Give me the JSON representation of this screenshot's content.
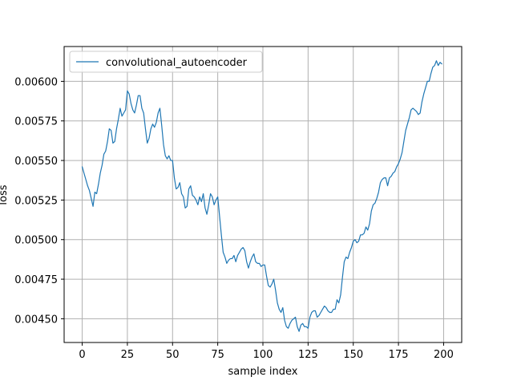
{
  "chart_data": {
    "type": "line",
    "title": "",
    "xlabel": "sample index",
    "ylabel": "loss",
    "xlim": [
      -10,
      210
    ],
    "ylim": [
      0.00435,
      0.00622
    ],
    "xticks": [
      0,
      25,
      50,
      75,
      100,
      125,
      150,
      175,
      200
    ],
    "yticks": [
      0.0045,
      0.00475,
      0.005,
      0.00525,
      0.0055,
      0.00575,
      0.006
    ],
    "ytick_labels": [
      "0.00450",
      "0.00475",
      "0.00500",
      "0.00525",
      "0.00550",
      "0.00575",
      "0.00600"
    ],
    "grid": true,
    "legend_position": "top-left",
    "series_color": "#1f77b4",
    "series": [
      {
        "name": "convolutional_autoencoder",
        "x": [
          0,
          1,
          2,
          3,
          4,
          5,
          6,
          7,
          8,
          9,
          10,
          11,
          12,
          13,
          14,
          15,
          16,
          17,
          18,
          19,
          20,
          21,
          22,
          23,
          24,
          25,
          26,
          27,
          28,
          29,
          30,
          31,
          32,
          33,
          34,
          35,
          36,
          37,
          38,
          39,
          40,
          41,
          42,
          43,
          44,
          45,
          46,
          47,
          48,
          49,
          50,
          51,
          52,
          53,
          54,
          55,
          56,
          57,
          58,
          59,
          60,
          61,
          62,
          63,
          64,
          65,
          66,
          67,
          68,
          69,
          70,
          71,
          72,
          73,
          74,
          75,
          76,
          77,
          78,
          79,
          80,
          81,
          82,
          83,
          84,
          85,
          86,
          87,
          88,
          89,
          90,
          91,
          92,
          93,
          94,
          95,
          96,
          97,
          98,
          99,
          100,
          101,
          102,
          103,
          104,
          105,
          106,
          107,
          108,
          109,
          110,
          111,
          112,
          113,
          114,
          115,
          116,
          117,
          118,
          119,
          120,
          121,
          122,
          123,
          124,
          125,
          126,
          127,
          128,
          129,
          130,
          131,
          132,
          133,
          134,
          135,
          136,
          137,
          138,
          139,
          140,
          141,
          142,
          143,
          144,
          145,
          146,
          147,
          148,
          149,
          150,
          151,
          152,
          153,
          154,
          155,
          156,
          157,
          158,
          159,
          160,
          161,
          162,
          163,
          164,
          165,
          166,
          167,
          168,
          169,
          170,
          171,
          172,
          173,
          174,
          175,
          176,
          177,
          178,
          179,
          180,
          181,
          182,
          183,
          184,
          185,
          186,
          187,
          188,
          189,
          190,
          191,
          192,
          193,
          194,
          195,
          196,
          197,
          198,
          199
        ],
        "values": [
          0.00546,
          0.00542,
          0.00538,
          0.00534,
          0.00531,
          0.00526,
          0.00521,
          0.0053,
          0.00529,
          0.00535,
          0.00542,
          0.00547,
          0.00554,
          0.00556,
          0.00562,
          0.0057,
          0.00569,
          0.00561,
          0.00562,
          0.0057,
          0.00576,
          0.00583,
          0.00578,
          0.0058,
          0.00582,
          0.00594,
          0.00592,
          0.00586,
          0.00582,
          0.0058,
          0.00585,
          0.00591,
          0.00591,
          0.00583,
          0.0058,
          0.0057,
          0.00561,
          0.00564,
          0.0057,
          0.00573,
          0.00571,
          0.00574,
          0.0058,
          0.00583,
          0.00572,
          0.0056,
          0.00553,
          0.00551,
          0.00553,
          0.0055,
          0.0055,
          0.00539,
          0.00532,
          0.00533,
          0.00536,
          0.00529,
          0.00527,
          0.0052,
          0.00521,
          0.00532,
          0.00534,
          0.00528,
          0.00527,
          0.00525,
          0.00522,
          0.00527,
          0.00524,
          0.00529,
          0.0052,
          0.00516,
          0.00522,
          0.00529,
          0.00527,
          0.00522,
          0.00525,
          0.00527,
          0.00515,
          0.00503,
          0.00492,
          0.00489,
          0.00485,
          0.00487,
          0.00488,
          0.00488,
          0.0049,
          0.00486,
          0.0049,
          0.00492,
          0.00494,
          0.00495,
          0.00493,
          0.00486,
          0.00482,
          0.00486,
          0.00489,
          0.00491,
          0.00486,
          0.00485,
          0.00485,
          0.00483,
          0.00484,
          0.00484,
          0.00477,
          0.00471,
          0.0047,
          0.00472,
          0.00475,
          0.00468,
          0.0046,
          0.00456,
          0.00454,
          0.00457,
          0.00449,
          0.00445,
          0.00444,
          0.00447,
          0.00449,
          0.0045,
          0.00451,
          0.00445,
          0.00442,
          0.00446,
          0.00447,
          0.00445,
          0.00445,
          0.00444,
          0.00451,
          0.00454,
          0.00455,
          0.00455,
          0.00451,
          0.00452,
          0.00454,
          0.00456,
          0.00458,
          0.00457,
          0.00455,
          0.00454,
          0.00454,
          0.00456,
          0.00456,
          0.00462,
          0.0046,
          0.00465,
          0.00476,
          0.00486,
          0.00489,
          0.00488,
          0.00492,
          0.00495,
          0.00499,
          0.005,
          0.00498,
          0.00499,
          0.00503,
          0.00503,
          0.00504,
          0.00508,
          0.00506,
          0.0051,
          0.00518,
          0.00522,
          0.00523,
          0.00526,
          0.0053,
          0.00536,
          0.00538,
          0.00539,
          0.00539,
          0.00534,
          0.00539,
          0.0054,
          0.00542,
          0.00543,
          0.00546,
          0.00548,
          0.00551,
          0.00555,
          0.00562,
          0.00569,
          0.00573,
          0.00577,
          0.00582,
          0.00583,
          0.00582,
          0.00581,
          0.00579,
          0.0058,
          0.00587,
          0.00592,
          0.00596,
          0.006,
          0.006,
          0.00605,
          0.00609,
          0.0061,
          0.00613,
          0.0061,
          0.00612,
          0.00611
        ]
      }
    ]
  }
}
